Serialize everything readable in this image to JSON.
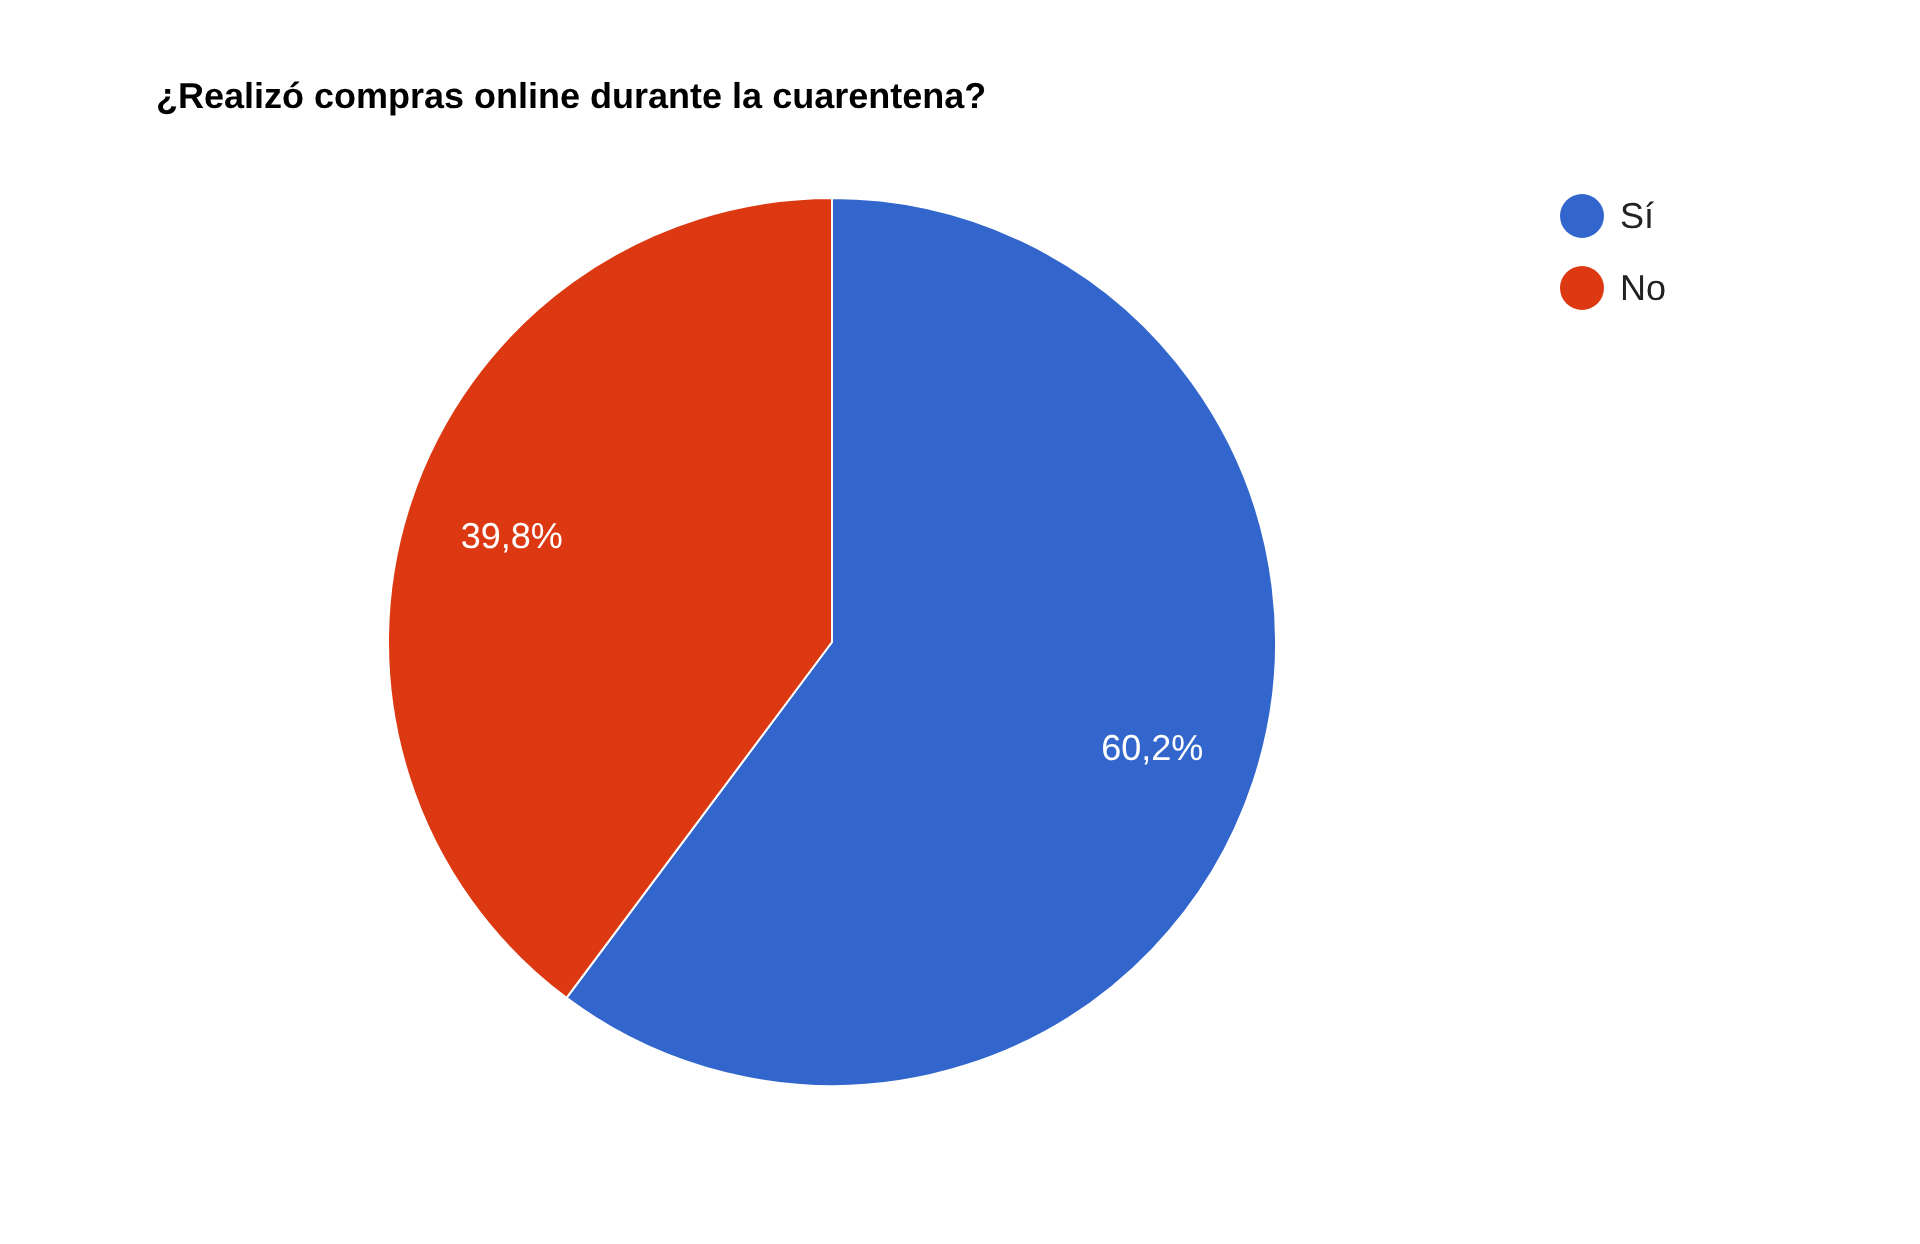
{
  "chart_data": {
    "type": "pie",
    "title": "¿Realizó compras online durante la cuarentena?",
    "categories": [
      "Sí",
      "No"
    ],
    "values": [
      60.2,
      39.8
    ],
    "colors": [
      "#3366cc",
      "#dc3912"
    ],
    "value_labels": [
      "60,2%",
      "39,8%"
    ],
    "legend": "top right"
  }
}
